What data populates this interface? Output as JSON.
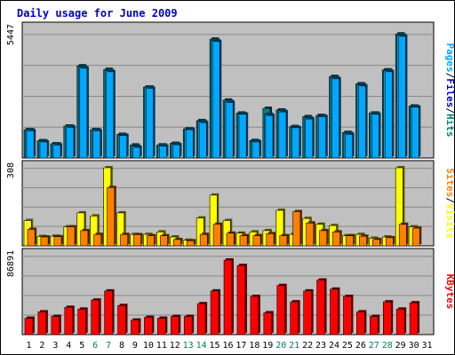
{
  "title": "Daily usage for June 2009",
  "colors": {
    "pages": "#00a8ff",
    "files": "#00aeef",
    "hits": "#008080",
    "visits": "#ffff00",
    "sites": "#ff8000",
    "kbytes": "#ff0000",
    "weekend_label": "#00805e",
    "weekday_label": "#000000",
    "plot_bg": "#c0c0c0"
  },
  "chart_data": [
    {
      "type": "bar",
      "panel": "hits-files-pages",
      "ymax_label": "5447",
      "ylim": [
        0,
        5447
      ],
      "legend": [
        {
          "text": "Pages",
          "color": "#00a8ff"
        },
        {
          "text": "/",
          "color": "#000000"
        },
        {
          "text": "Files",
          "color": "#0000c8"
        },
        {
          "text": "/",
          "color": "#000000"
        },
        {
          "text": "Hits",
          "color": "#008080"
        }
      ],
      "categories": [
        "1",
        "2",
        "3",
        "4",
        "5",
        "6",
        "7",
        "8",
        "9",
        "10",
        "11",
        "12",
        "13",
        "14",
        "15",
        "16",
        "17",
        "18",
        "19",
        "20",
        "21",
        "22",
        "23",
        "24",
        "25",
        "26",
        "27",
        "28",
        "29",
        "30",
        "31"
      ],
      "series": [
        {
          "key": "hits",
          "values": [
            1200,
            730,
            600,
            1350,
            3900,
            1200,
            3750,
            1000,
            550,
            3000,
            550,
            620,
            1230,
            1580,
            5030,
            2450,
            1900,
            740,
            2100,
            2030,
            1330,
            1750,
            1800,
            3450,
            1080,
            3140,
            1900,
            3730,
            5250,
            2200,
            0
          ]
        },
        {
          "key": "files",
          "values": [
            1200,
            720,
            600,
            1350,
            3850,
            1200,
            3700,
            980,
            500,
            3000,
            550,
            600,
            1230,
            1550,
            4970,
            2400,
            1880,
            720,
            1850,
            2000,
            1310,
            1700,
            1780,
            3400,
            1050,
            3100,
            1900,
            3700,
            5200,
            2180,
            0
          ]
        },
        {
          "key": "pages",
          "values": [
            1150,
            680,
            550,
            1300,
            3800,
            1150,
            3650,
            950,
            450,
            2950,
            500,
            560,
            1200,
            1500,
            4930,
            2350,
            1850,
            680,
            1800,
            1950,
            1280,
            1650,
            1750,
            3350,
            1000,
            3050,
            1850,
            3650,
            5150,
            2150,
            0
          ]
        }
      ],
      "weekends": [
        6,
        7,
        13,
        14,
        20,
        21,
        27,
        28
      ]
    },
    {
      "type": "bar",
      "panel": "visits-sites",
      "ymax_label": "308",
      "ylim": [
        0,
        308
      ],
      "legend": [
        {
          "text": "Sites",
          "color": "#ff8000"
        },
        {
          "text": "/",
          "color": "#000000"
        },
        {
          "text": "Visits",
          "color": "#ffff00"
        }
      ],
      "series": [
        {
          "key": "visits",
          "values": [
            100,
            37,
            38,
            75,
            130,
            118,
            308,
            130,
            45,
            45,
            55,
            35,
            22,
            110,
            200,
            100,
            50,
            55,
            60,
            140,
            45,
            108,
            85,
            80,
            40,
            45,
            30,
            35,
            308,
            75,
            0
          ]
        },
        {
          "key": "sites",
          "values": [
            65,
            35,
            36,
            75,
            60,
            45,
            230,
            45,
            44,
            40,
            40,
            25,
            20,
            45,
            85,
            50,
            40,
            40,
            48,
            40,
            135,
            90,
            60,
            55,
            40,
            38,
            25,
            32,
            85,
            70,
            0
          ]
        }
      ]
    },
    {
      "type": "bar",
      "panel": "kbytes",
      "ymax_label": "86891",
      "ylim": [
        0,
        86891
      ],
      "legend": [
        {
          "text": "KBytes",
          "color": "#ff0000"
        }
      ],
      "series": [
        {
          "key": "kbytes",
          "values": [
            18000,
            25000,
            20000,
            30000,
            28000,
            38000,
            48000,
            32000,
            16000,
            19000,
            18000,
            20000,
            20000,
            34000,
            48000,
            82000,
            76000,
            42000,
            24000,
            54000,
            36000,
            48000,
            60000,
            50000,
            42000,
            25000,
            20000,
            36000,
            28000,
            35000,
            0
          ]
        }
      ]
    }
  ]
}
